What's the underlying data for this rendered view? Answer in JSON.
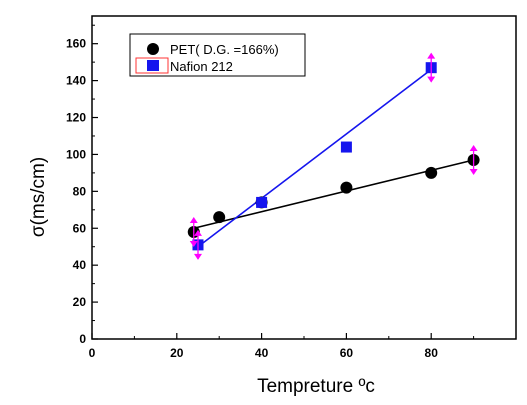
{
  "chart_data": {
    "type": "scatter",
    "xlabel": "Tempreture ºc",
    "ylabel": "σ(ms/cm)",
    "xlim": [
      0,
      100
    ],
    "ylim": [
      0,
      175
    ],
    "x_ticks": [
      0,
      20,
      40,
      60,
      80
    ],
    "y_ticks": [
      0,
      20,
      40,
      60,
      80,
      100,
      120,
      140,
      160
    ],
    "grid": false,
    "legend_position": "top-left",
    "series": [
      {
        "name": "PET( D.G. =166%)",
        "marker": "circle",
        "color": "#000000",
        "x": [
          24,
          30,
          40,
          60,
          80,
          90
        ],
        "y": [
          58,
          66,
          74,
          82,
          90,
          97
        ],
        "fit": [
          [
            24,
            60
          ],
          [
            90,
            97
          ]
        ]
      },
      {
        "name": "Nafion 212",
        "marker": "square",
        "color": "#1515ee",
        "x": [
          25,
          40,
          60,
          80
        ],
        "y": [
          51,
          74,
          104,
          147
        ],
        "fit": [
          [
            25,
            50
          ],
          [
            80,
            146
          ]
        ]
      }
    ],
    "error_markers": [
      {
        "x": 24,
        "y": 58
      },
      {
        "x": 25,
        "y": 51
      },
      {
        "x": 80,
        "y": 147
      },
      {
        "x": 90,
        "y": 97
      }
    ],
    "error_color": "#ff00ff"
  }
}
